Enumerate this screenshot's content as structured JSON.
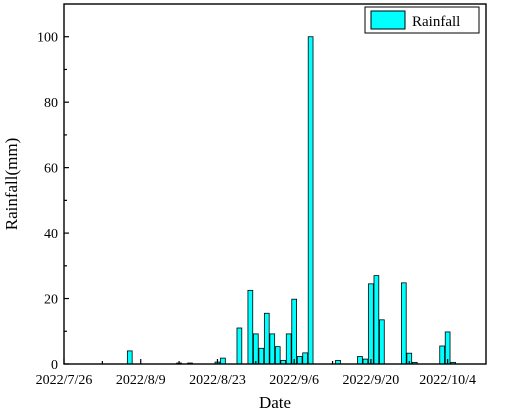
{
  "chart_data": {
    "type": "bar",
    "xlabel": "Date",
    "ylabel": "Rainfall(mm)",
    "ylim": [
      0,
      110
    ],
    "yticks": [
      0,
      20,
      40,
      60,
      80,
      100
    ],
    "xrange": [
      "2022-07-26",
      "2022-10-11"
    ],
    "xticks": [
      {
        "date": "2022-07-26",
        "label": "2022/7/26"
      },
      {
        "date": "2022-08-09",
        "label": "2022/8/9"
      },
      {
        "date": "2022-08-23",
        "label": "2022/8/23"
      },
      {
        "date": "2022-09-06",
        "label": "2022/9/6"
      },
      {
        "date": "2022-09-20",
        "label": "2022/9/20"
      },
      {
        "date": "2022-10-04",
        "label": "2022/10/4"
      }
    ],
    "legend": {
      "label": "Rainfall",
      "position": "top-right"
    },
    "bar_color": "#00ffff",
    "series": [
      {
        "name": "Rainfall",
        "points": [
          {
            "date": "2022-08-07",
            "value": 4.0
          },
          {
            "date": "2022-08-16",
            "value": 0.3
          },
          {
            "date": "2022-08-18",
            "value": 0.3
          },
          {
            "date": "2022-08-23",
            "value": 0.6
          },
          {
            "date": "2022-08-24",
            "value": 1.8
          },
          {
            "date": "2022-08-27",
            "value": 11.0
          },
          {
            "date": "2022-08-29",
            "value": 22.5
          },
          {
            "date": "2022-08-30",
            "value": 9.2
          },
          {
            "date": "2022-08-31",
            "value": 4.8
          },
          {
            "date": "2022-09-01",
            "value": 15.5
          },
          {
            "date": "2022-09-02",
            "value": 9.2
          },
          {
            "date": "2022-09-03",
            "value": 5.3
          },
          {
            "date": "2022-09-04",
            "value": 1.1
          },
          {
            "date": "2022-09-05",
            "value": 9.2
          },
          {
            "date": "2022-09-06",
            "value": 19.8
          },
          {
            "date": "2022-09-07",
            "value": 2.3
          },
          {
            "date": "2022-09-08",
            "value": 3.4
          },
          {
            "date": "2022-09-09",
            "value": 100.0
          },
          {
            "date": "2022-09-14",
            "value": 1.1
          },
          {
            "date": "2022-09-18",
            "value": 2.3
          },
          {
            "date": "2022-09-19",
            "value": 1.5
          },
          {
            "date": "2022-09-20",
            "value": 24.5
          },
          {
            "date": "2022-09-21",
            "value": 27.0
          },
          {
            "date": "2022-09-22",
            "value": 13.5
          },
          {
            "date": "2022-09-26",
            "value": 24.8
          },
          {
            "date": "2022-09-27",
            "value": 3.3
          },
          {
            "date": "2022-09-28",
            "value": 0.5
          },
          {
            "date": "2022-10-03",
            "value": 5.5
          },
          {
            "date": "2022-10-04",
            "value": 9.8
          },
          {
            "date": "2022-10-05",
            "value": 0.5
          }
        ]
      }
    ]
  }
}
